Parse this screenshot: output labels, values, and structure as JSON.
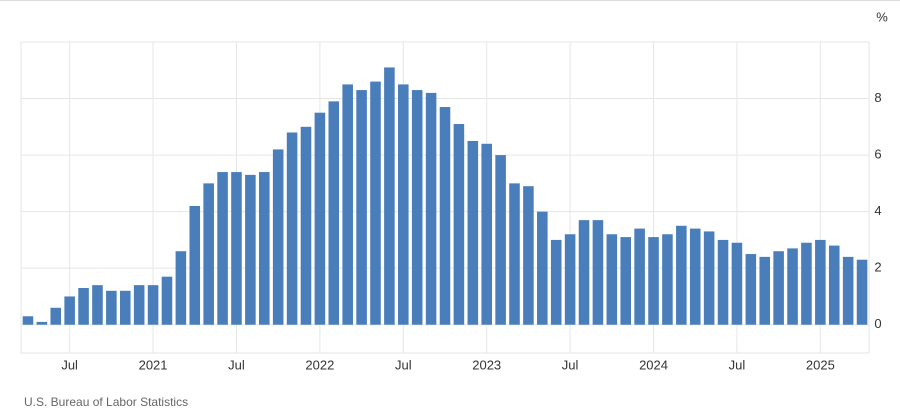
{
  "chart_data": {
    "type": "bar",
    "y_unit": "%",
    "source": "U.S. Bureau of Labor Statistics",
    "categories": [
      null,
      null,
      null,
      "Jul",
      null,
      null,
      null,
      null,
      null,
      "2021",
      null,
      null,
      null,
      null,
      null,
      "Jul",
      null,
      null,
      null,
      null,
      null,
      "2022",
      null,
      null,
      null,
      null,
      null,
      "Jul",
      null,
      null,
      null,
      null,
      null,
      "2023",
      null,
      null,
      null,
      null,
      null,
      "Jul",
      null,
      null,
      null,
      null,
      null,
      "2024",
      null,
      null,
      null,
      null,
      null,
      "Jul",
      null,
      null,
      null,
      null,
      null,
      "2025",
      null,
      null,
      null
    ],
    "values": [
      0.3,
      0.1,
      0.6,
      1.0,
      1.3,
      1.4,
      1.2,
      1.2,
      1.4,
      1.4,
      1.7,
      2.6,
      4.2,
      5.0,
      5.4,
      5.4,
      5.3,
      5.4,
      6.2,
      6.8,
      7.0,
      7.5,
      7.9,
      8.5,
      8.3,
      8.6,
      9.1,
      8.5,
      8.3,
      8.2,
      7.7,
      7.1,
      6.5,
      6.4,
      6.0,
      5.0,
      4.9,
      4.0,
      3.0,
      3.2,
      3.7,
      3.7,
      3.2,
      3.1,
      3.4,
      3.1,
      3.2,
      3.5,
      3.4,
      3.3,
      3.0,
      2.9,
      2.5,
      2.4,
      2.6,
      2.7,
      2.9,
      3.0,
      2.8,
      2.4,
      2.3
    ],
    "color": "#4a7ebb",
    "ylim": [
      -1,
      10
    ],
    "yticks": [
      0,
      2,
      4,
      6,
      8
    ],
    "grid": true
  }
}
